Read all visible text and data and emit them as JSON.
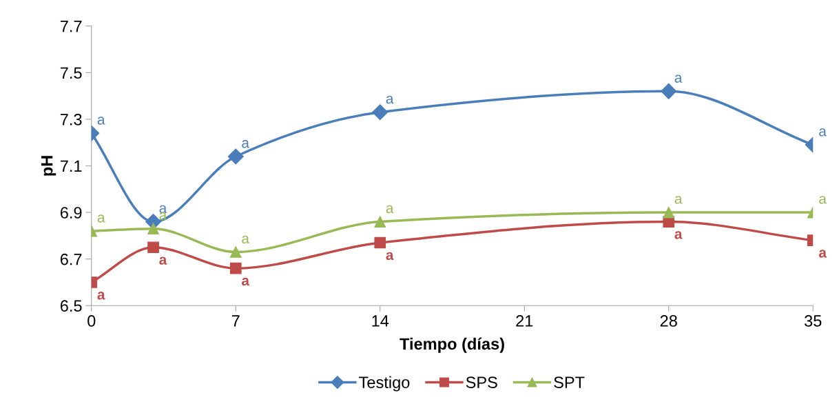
{
  "chart_data": {
    "type": "line",
    "xlabel": "Tiempo (días)",
    "ylabel": "pH",
    "x": [
      0,
      3,
      7,
      14,
      28,
      35
    ],
    "xlim": [
      0,
      35
    ],
    "xticks": [
      0,
      7,
      14,
      21,
      28,
      35
    ],
    "ylim": [
      6.5,
      7.7
    ],
    "yticks": [
      6.5,
      6.7,
      6.9,
      7.1,
      7.3,
      7.5,
      7.7
    ],
    "grid": false,
    "legend": "bottom",
    "line_style": "solid",
    "series": [
      {
        "name": "Testigo",
        "color": "#4a7ebb",
        "marker": "diamond",
        "values": [
          7.24,
          6.86,
          7.14,
          7.33,
          7.42,
          7.19
        ],
        "value_labels": [
          "a",
          "a",
          "a",
          "a",
          "a",
          "a"
        ]
      },
      {
        "name": "SPS",
        "color": "#be4b48",
        "marker": "square",
        "values": [
          6.6,
          6.75,
          6.66,
          6.77,
          6.86,
          6.78
        ],
        "value_labels": [
          "a",
          "a",
          "a",
          "a",
          "a",
          "a"
        ]
      },
      {
        "name": "SPT",
        "color": "#98b954",
        "marker": "triangle",
        "values": [
          6.82,
          6.83,
          6.73,
          6.86,
          6.9,
          6.9
        ],
        "value_labels": [
          "a",
          "a",
          "a",
          "a",
          "a",
          "a"
        ]
      }
    ]
  }
}
